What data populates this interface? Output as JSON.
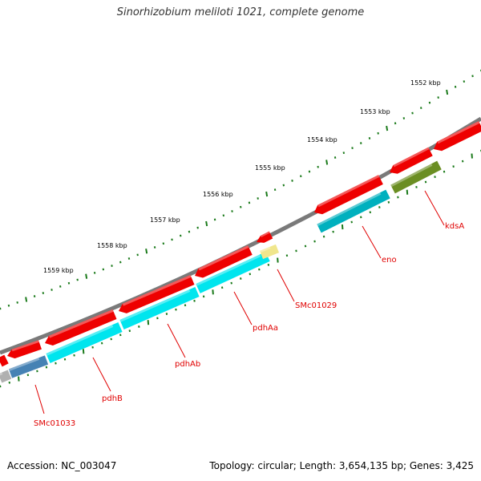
{
  "title": "Sinorhizobium meliloti 1021, complete genome",
  "footer": {
    "accession": "Accession: NC_003047",
    "summary": "Topology: circular; Length: 3,654,135 bp; Genes: 3,425"
  },
  "ruler": {
    "labels": [
      "1552 kbp",
      "1553 kbp",
      "1554 kbp",
      "1555 kbp",
      "1556 kbp",
      "1557 kbp",
      "1558 kbp",
      "1559 kbp"
    ]
  },
  "colors": {
    "backbone": "#7a7a7a",
    "ruler": "#1a7a1a",
    "cds_red": "#ee0000",
    "label_red": "#e00000",
    "gene_cyan": "#00e5ee",
    "gene_teal": "#00b0be",
    "gene_steelblue": "#4682b4",
    "gene_olive": "#6b8e23",
    "gene_khaki": "#f0e68c",
    "gene_grey": "#b0b0b0"
  },
  "genes": [
    {
      "name": "kdsA",
      "color": "olive"
    },
    {
      "name": "eno",
      "color": "teal"
    },
    {
      "name": "SMc01029",
      "color": "khaki"
    },
    {
      "name": "pdhAa",
      "color": "cyan"
    },
    {
      "name": "pdhAb",
      "color": "cyan"
    },
    {
      "name": "pdhB",
      "color": "cyan"
    },
    {
      "name": "SMc01033",
      "color": "steelblue"
    }
  ]
}
